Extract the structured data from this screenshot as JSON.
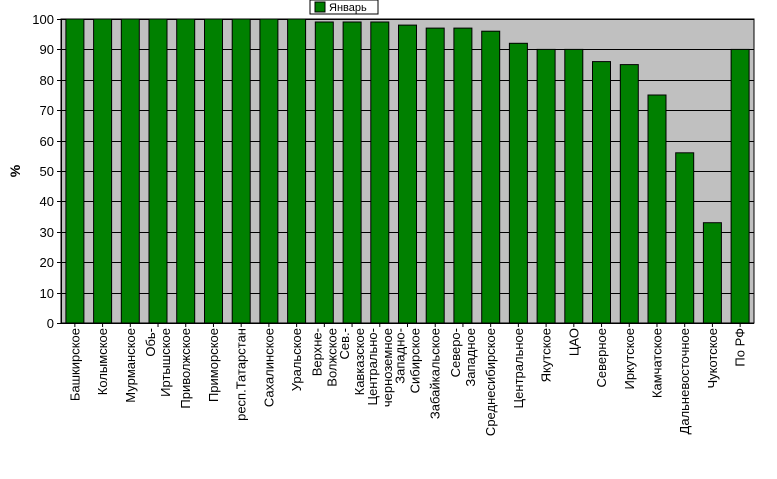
{
  "chart_data": {
    "type": "bar",
    "ylabel": "%",
    "xlabel": "",
    "ylim": [
      0,
      100
    ],
    "yticks": [
      0,
      10,
      20,
      30,
      40,
      50,
      60,
      70,
      80,
      90,
      100
    ],
    "grid": "horizontal",
    "legend_position": "top-center",
    "colors": {
      "bar": "#008000",
      "bar_edge": "#000000",
      "plot_background": "#c0c0c0",
      "grid": "#000000"
    },
    "categories": [
      "Башкирское",
      "Колымское",
      "Мурманское",
      "Обь-Иртышское",
      "Приволжское",
      "Приморское",
      "респ.Татарстан",
      "Сахалинское",
      "Уральское",
      "Верхне-Волжское",
      "Сев.-Кавказское",
      "Центрально-черноземное",
      "Западно-Сибирское",
      "Забайкальское",
      "Северо-Западное",
      "Среднесибирское",
      "Центральное",
      "Якутское",
      "ЦАО",
      "Северное",
      "Иркутское",
      "Камчатское",
      "Дальневосточное",
      "Чукотское",
      "По РФ"
    ],
    "label_lines": [
      [
        "Башкирское"
      ],
      [
        "Колымское"
      ],
      [
        "Мурманское"
      ],
      [
        "Обь-",
        "Иртышское"
      ],
      [
        "Приволжское"
      ],
      [
        "Приморское"
      ],
      [
        "респ.Татарстан"
      ],
      [
        "Сахалинское"
      ],
      [
        "Уральское"
      ],
      [
        "Верхне-",
        "Волжское"
      ],
      [
        "Сев.-",
        "Кавказское"
      ],
      [
        "Центрально-",
        "черноземное"
      ],
      [
        "Западно-",
        "Сибирское"
      ],
      [
        "Забайкальское"
      ],
      [
        "Северо-",
        "Западное"
      ],
      [
        "Среднесибирское"
      ],
      [
        "Центральное"
      ],
      [
        "Якутское"
      ],
      [
        "ЦАО"
      ],
      [
        "Северное"
      ],
      [
        "Иркутское"
      ],
      [
        "Камчатское"
      ],
      [
        "Дальневосточное"
      ],
      [
        "Чукотское"
      ],
      [
        "По РФ"
      ]
    ],
    "series": [
      {
        "name": "Январь",
        "values": [
          100,
          100,
          100,
          100,
          100,
          100,
          100,
          100,
          100,
          99,
          99,
          99,
          98,
          97,
          97,
          96,
          92,
          90,
          90,
          86,
          85,
          75,
          56,
          33,
          90
        ]
      }
    ]
  }
}
